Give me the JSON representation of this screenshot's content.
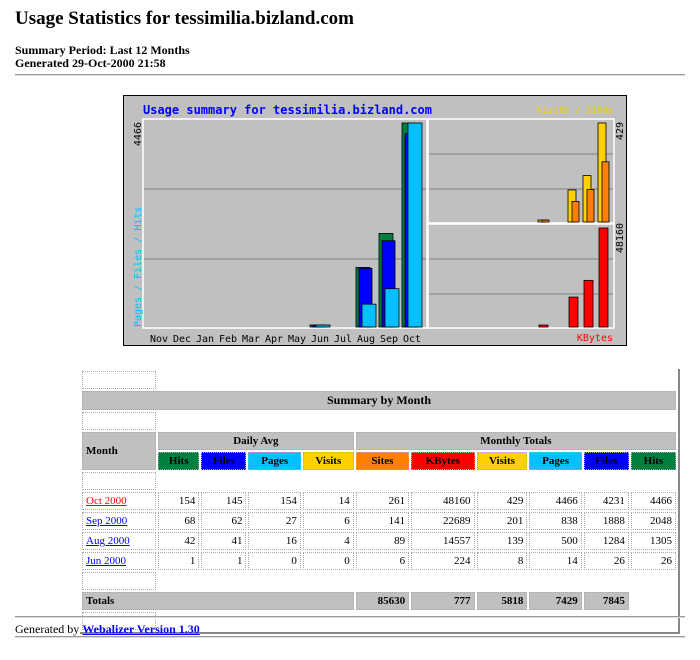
{
  "header": {
    "title": "Usage Statistics for tessimilia.bizland.com",
    "period": "Summary Period: Last 12 Months",
    "generated": "Generated 29-Oct-2000 21:58"
  },
  "colors": {
    "hits": "#008040",
    "files": "#0000ff",
    "pages": "#00c0ff",
    "visits": "#ffd000",
    "sites": "#ff8000",
    "kbytes": "#ff0000",
    "panel": "#c0c0c0"
  },
  "chart_data": {
    "type": "bar",
    "title": "Usage summary for tessimilia.bizland.com",
    "categories": [
      "Nov",
      "Dec",
      "Jan",
      "Feb",
      "Mar",
      "Apr",
      "May",
      "Jun",
      "Jul",
      "Aug",
      "Sep",
      "Oct"
    ],
    "left_label": "Pages / Files / Hits",
    "left_max_label": "4466",
    "right_top_label": "Visits / Sites",
    "right_top_max_label": "429",
    "right_bottom_label": "KBytes",
    "right_bottom_max_label": "48160",
    "series": [
      {
        "name": "Hits",
        "values": [
          0,
          0,
          0,
          0,
          0,
          0,
          0,
          26,
          0,
          1305,
          2048,
          4466
        ]
      },
      {
        "name": "Files",
        "values": [
          0,
          0,
          0,
          0,
          0,
          0,
          0,
          26,
          0,
          1284,
          1888,
          4231
        ]
      },
      {
        "name": "Pages",
        "values": [
          0,
          0,
          0,
          0,
          0,
          0,
          0,
          14,
          0,
          500,
          838,
          4466
        ]
      },
      {
        "name": "Visits",
        "values": [
          0,
          0,
          0,
          0,
          0,
          0,
          0,
          8,
          0,
          139,
          201,
          429
        ]
      },
      {
        "name": "Sites",
        "values": [
          0,
          0,
          0,
          0,
          0,
          0,
          0,
          6,
          0,
          89,
          141,
          261
        ]
      },
      {
        "name": "KBytes",
        "values": [
          0,
          0,
          0,
          0,
          0,
          0,
          0,
          224,
          0,
          14557,
          22689,
          48160
        ]
      }
    ]
  },
  "table": {
    "title": "Summary by Month",
    "month_header": "Month",
    "daily_avg": "Daily Avg",
    "monthly_totals": "Monthly Totals",
    "cols": [
      "Hits",
      "Files",
      "Pages",
      "Visits",
      "Sites",
      "KBytes",
      "Visits",
      "Pages",
      "Files",
      "Hits"
    ],
    "rows": [
      {
        "month": "Oct 2000",
        "v": [
          "154",
          "145",
          "154",
          "14",
          "261",
          "48160",
          "429",
          "4466",
          "4231",
          "4466"
        ]
      },
      {
        "month": "Sep 2000",
        "v": [
          "68",
          "62",
          "27",
          "6",
          "141",
          "22689",
          "201",
          "838",
          "1888",
          "2048"
        ]
      },
      {
        "month": "Aug 2000",
        "v": [
          "42",
          "41",
          "16",
          "4",
          "89",
          "14557",
          "139",
          "500",
          "1284",
          "1305"
        ]
      },
      {
        "month": "Jun 2000",
        "v": [
          "1",
          "1",
          "0",
          "0",
          "6",
          "224",
          "8",
          "14",
          "26",
          "26"
        ]
      }
    ],
    "totals_label": "Totals",
    "totals": [
      "85630",
      "777",
      "5818",
      "7429",
      "7845"
    ]
  },
  "footer": {
    "prefix": "Generated by",
    "link": "Webalizer Version 1.30"
  }
}
